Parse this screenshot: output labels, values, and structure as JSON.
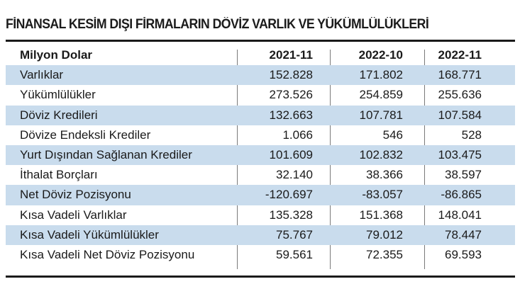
{
  "title": "FİNANSAL KESİM DIŞI FİRMALARIN DÖVİZ VARLIK VE YÜKÜMLÜLÜKLERİ",
  "header": {
    "label": "Milyon Dolar",
    "col1": "2021-11",
    "col2": "2022-10",
    "col3": "2022-11"
  },
  "rows": [
    {
      "label": "Varlıklar",
      "v1": "152.828",
      "v2": "171.802",
      "v3": "168.771"
    },
    {
      "label": "Yükümlülükler",
      "v1": "273.526",
      "v2": "254.859",
      "v3": "255.636"
    },
    {
      "label": "Döviz Kredileri",
      "v1": "132.663",
      "v2": "107.781",
      "v3": "107.584"
    },
    {
      "label": "Dövize Endeksli Krediler",
      "v1": "1.066",
      "v2": "546",
      "v3": "528"
    },
    {
      "label": "Yurt Dışından Sağlanan Krediler",
      "v1": "101.609",
      "v2": "102.832",
      "v3": "103.475"
    },
    {
      "label": "İthalat Borçları",
      "v1": "32.140",
      "v2": "38.366",
      "v3": "38.597"
    },
    {
      "label": "Net Döviz Pozisyonu",
      "v1": "-120.697",
      "v2": "-83.057",
      "v3": "-86.865"
    },
    {
      "label": "Kısa Vadeli Varlıklar",
      "v1": "135.328",
      "v2": "151.368",
      "v3": "148.041"
    },
    {
      "label": "Kısa Vadeli Yükümlülükler",
      "v1": "75.767",
      "v2": "79.012",
      "v3": "78.447"
    },
    {
      "label": "Kısa Vadeli Net Döviz Pozisyonu",
      "v1": "59.561",
      "v2": "72.355",
      "v3": "69.593"
    }
  ],
  "colors": {
    "shade": "#c9dced",
    "text": "#1a1a1a",
    "rule": "#1a1a1a"
  }
}
